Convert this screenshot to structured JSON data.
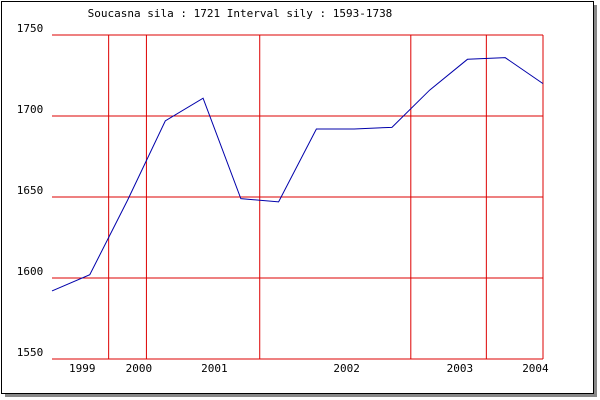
{
  "chart_data": {
    "type": "line",
    "title": "Soucasna sila : 1721  Interval sily : 1593-1738",
    "x": [
      0,
      1,
      2,
      3,
      4,
      5,
      6,
      7,
      8,
      9,
      10,
      11,
      12,
      13
    ],
    "series": [
      {
        "color": "#0000aa",
        "values": [
          1592,
          1602,
          1648,
          1697,
          1711,
          1649,
          1647,
          1692,
          1692,
          1693,
          1716,
          1735,
          1736,
          1720
        ]
      }
    ],
    "xlim": [
      0,
      13
    ],
    "xticks": [
      {
        "value": 0.8,
        "label": "1999"
      },
      {
        "value": 2.3,
        "label": "2000"
      },
      {
        "value": 4.3,
        "label": "2001"
      },
      {
        "value": 7.8,
        "label": "2002"
      },
      {
        "value": 10.8,
        "label": "2003"
      },
      {
        "value": 12.8,
        "label": "2004"
      }
    ],
    "xgrid": [
      1.5,
      2.5,
      5.5,
      9.5,
      11.5,
      13
    ],
    "ylim": [
      1550,
      1750
    ],
    "yticks": [
      1550,
      1600,
      1650,
      1700,
      1750
    ],
    "grid": true,
    "grid_color": "#dd0000"
  }
}
